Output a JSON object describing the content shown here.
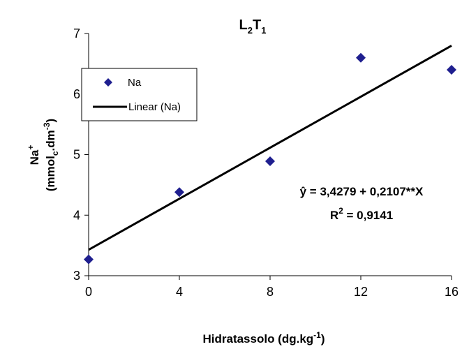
{
  "chart_data": {
    "type": "scatter",
    "title": {
      "base": "L",
      "sub1": "2",
      "mid": "T",
      "sub2": "1"
    },
    "xlabel": {
      "text": "Hidratassolo (dg.kg",
      "sup": "-1",
      "close": ")"
    },
    "ylabel": {
      "line1": {
        "text": "Na",
        "sup": "+"
      },
      "line2": {
        "pre": "(mmol",
        "sub": "c",
        "mid": ".dm",
        "sup": "-3",
        "close": ")"
      }
    },
    "xlim": [
      0,
      16
    ],
    "ylim": [
      3,
      7
    ],
    "xticks": [
      0,
      4,
      8,
      12,
      16
    ],
    "yticks": [
      3,
      4,
      5,
      6,
      7
    ],
    "grid": false,
    "series": [
      {
        "name": "Na",
        "marker": "diamond",
        "color": "#1f1f8f",
        "x": [
          0,
          4,
          8,
          12,
          16
        ],
        "y": [
          3.27,
          4.38,
          4.89,
          6.6,
          6.4
        ]
      }
    ],
    "trendline": {
      "name": "Linear (Na)",
      "type": "linear",
      "intercept": 3.4279,
      "slope": 0.2107,
      "color": "#000000"
    },
    "annotations": {
      "equation": "ŷ = 3,4279 +  0,2107**X",
      "r2": {
        "base": "R",
        "sup": "2",
        "value": " = 0,9141"
      }
    },
    "legend": {
      "placement": "top-left"
    }
  }
}
